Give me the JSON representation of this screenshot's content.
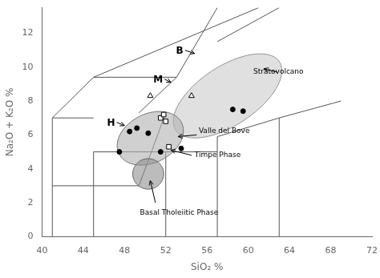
{
  "chart_data": {
    "type": "scatter",
    "xlabel": "SiO₂ %",
    "ylabel": "Na₂O + K₂O %",
    "xlim": [
      40,
      72
    ],
    "ylim": [
      0,
      13.5
    ],
    "xticks": [
      40,
      44,
      48,
      52,
      56,
      60,
      64,
      68,
      72
    ],
    "yticks": [
      0,
      2,
      4,
      6,
      8,
      10,
      12
    ],
    "grid": false,
    "series": [
      {
        "type": "line",
        "color": "#555555",
        "x": [
          41,
          41
        ],
        "values": [
          0,
          7
        ]
      },
      {
        "type": "line",
        "color": "#555555",
        "x": [
          41,
          45
        ],
        "values": [
          3,
          3
        ]
      },
      {
        "type": "line",
        "color": "#555555",
        "x": [
          45,
          45
        ],
        "values": [
          0,
          5
        ]
      },
      {
        "type": "line",
        "color": "#555555",
        "x": [
          45,
          49.4
        ],
        "values": [
          3,
          3
        ]
      },
      {
        "type": "line",
        "color": "#555555",
        "x": [
          49.4,
          52
        ],
        "values": [
          3,
          7.3
        ]
      },
      {
        "type": "line",
        "color": "#555555",
        "x": [
          41,
          45
        ],
        "values": [
          7,
          7
        ]
      },
      {
        "type": "line",
        "color": "#555555",
        "x": [
          45,
          52
        ],
        "values": [
          5,
          5
        ]
      },
      {
        "type": "line",
        "color": "#555555",
        "x": [
          52,
          52
        ],
        "values": [
          0,
          5
        ]
      },
      {
        "type": "line",
        "color": "#555555",
        "x": [
          52,
          57
        ],
        "values": [
          5,
          5
        ]
      },
      {
        "type": "line",
        "color": "#555555",
        "x": [
          57,
          57
        ],
        "values": [
          0,
          5.9
        ]
      },
      {
        "type": "line",
        "color": "#555555",
        "x": [
          57,
          63
        ],
        "values": [
          5.9,
          7
        ]
      },
      {
        "type": "line",
        "color": "#555555",
        "x": [
          63,
          63
        ],
        "values": [
          0,
          7
        ]
      },
      {
        "type": "line",
        "color": "#555555",
        "x": [
          63,
          69
        ],
        "values": [
          7,
          8
        ]
      },
      {
        "type": "line",
        "color": "#555555",
        "x": [
          41,
          45
        ],
        "values": [
          7,
          9.4
        ]
      },
      {
        "type": "line",
        "color": "#555555",
        "x": [
          45,
          53.05
        ],
        "values": [
          9.4,
          9.4
        ]
      },
      {
        "type": "line",
        "color": "#555555",
        "x": [
          49.4,
          53.05
        ],
        "values": [
          7.3,
          9.4
        ]
      },
      {
        "type": "line",
        "color": "#555555",
        "x": [
          53.05,
          57
        ],
        "values": [
          9.4,
          13.5
        ]
      },
      {
        "type": "line",
        "color": "#555555",
        "x": [
          45,
          61
        ],
        "values": [
          9.4,
          13.5
        ]
      },
      {
        "type": "line",
        "color": "#555555",
        "x": [
          57,
          63
        ],
        "values": [
          11.5,
          13.5
        ]
      },
      {
        "type": "scatter",
        "marker": "circle",
        "color": "#000000",
        "x": [
          47.5,
          48.5,
          49.2,
          50.3,
          51.5,
          53.5,
          59.5,
          58.5
        ],
        "values": [
          5.0,
          6.2,
          6.4,
          6.1,
          5.0,
          5.2,
          7.4,
          7.5
        ]
      },
      {
        "type": "scatter",
        "marker": "open_square",
        "color": "#000000",
        "x": [
          51.5,
          52.0,
          52.3,
          51.8
        ],
        "values": [
          7.0,
          6.8,
          5.3,
          7.2
        ]
      },
      {
        "type": "scatter",
        "marker": "open_triangle",
        "color": "#000000",
        "x": [
          50.5,
          54.5
        ],
        "values": [
          8.3,
          8.3
        ]
      }
    ],
    "ellipses": [
      {
        "x": 58.0,
        "y": 8.3,
        "width": 11.0,
        "height": 3.8,
        "angle": 18,
        "color": "#cccccc",
        "edge_color": "#888888"
      },
      {
        "x": 50.5,
        "y": 5.8,
        "width": 6.5,
        "height": 3.0,
        "angle": 10,
        "color": "#b0b0b0",
        "edge_color": "#666666"
      },
      {
        "x": 50.3,
        "y": 3.7,
        "width": 3.0,
        "height": 1.8,
        "angle": 0,
        "color": "#909090",
        "edge_color": "#555555"
      }
    ],
    "annotations": [
      {
        "text": "B",
        "x": 53.0,
        "y": 10.8,
        "arrow_to": [
          54.8,
          10.8
        ]
      },
      {
        "text": "M",
        "x": 50.8,
        "y": 9.1,
        "arrow_to": [
          52.5,
          9.1
        ]
      },
      {
        "text": "H",
        "x": 46.3,
        "y": 6.55,
        "arrow_to": [
          48.0,
          6.55
        ]
      }
    ],
    "region_labels": [
      {
        "text": "Stratovolcano",
        "x": 60.5,
        "y": 9.6
      },
      {
        "text": "Valle del Bove",
        "x": 55.2,
        "y": 6.1
      },
      {
        "text": "Timpe Phase",
        "x": 54.8,
        "y": 4.7
      },
      {
        "text": "Basal Tholeiitic Phase",
        "x": 49.5,
        "y": 1.3
      }
    ],
    "arrows": [
      {
        "from": [
          62.8,
          9.7
        ],
        "to": [
          61.5,
          9.9
        ]
      },
      {
        "from": [
          55.0,
          6.0
        ],
        "to": [
          53.2,
          5.9
        ]
      },
      {
        "from": [
          54.5,
          4.8
        ],
        "to": [
          52.5,
          5.1
        ]
      },
      {
        "from": [
          51.0,
          2.0
        ],
        "to": [
          50.5,
          3.3
        ]
      }
    ]
  }
}
